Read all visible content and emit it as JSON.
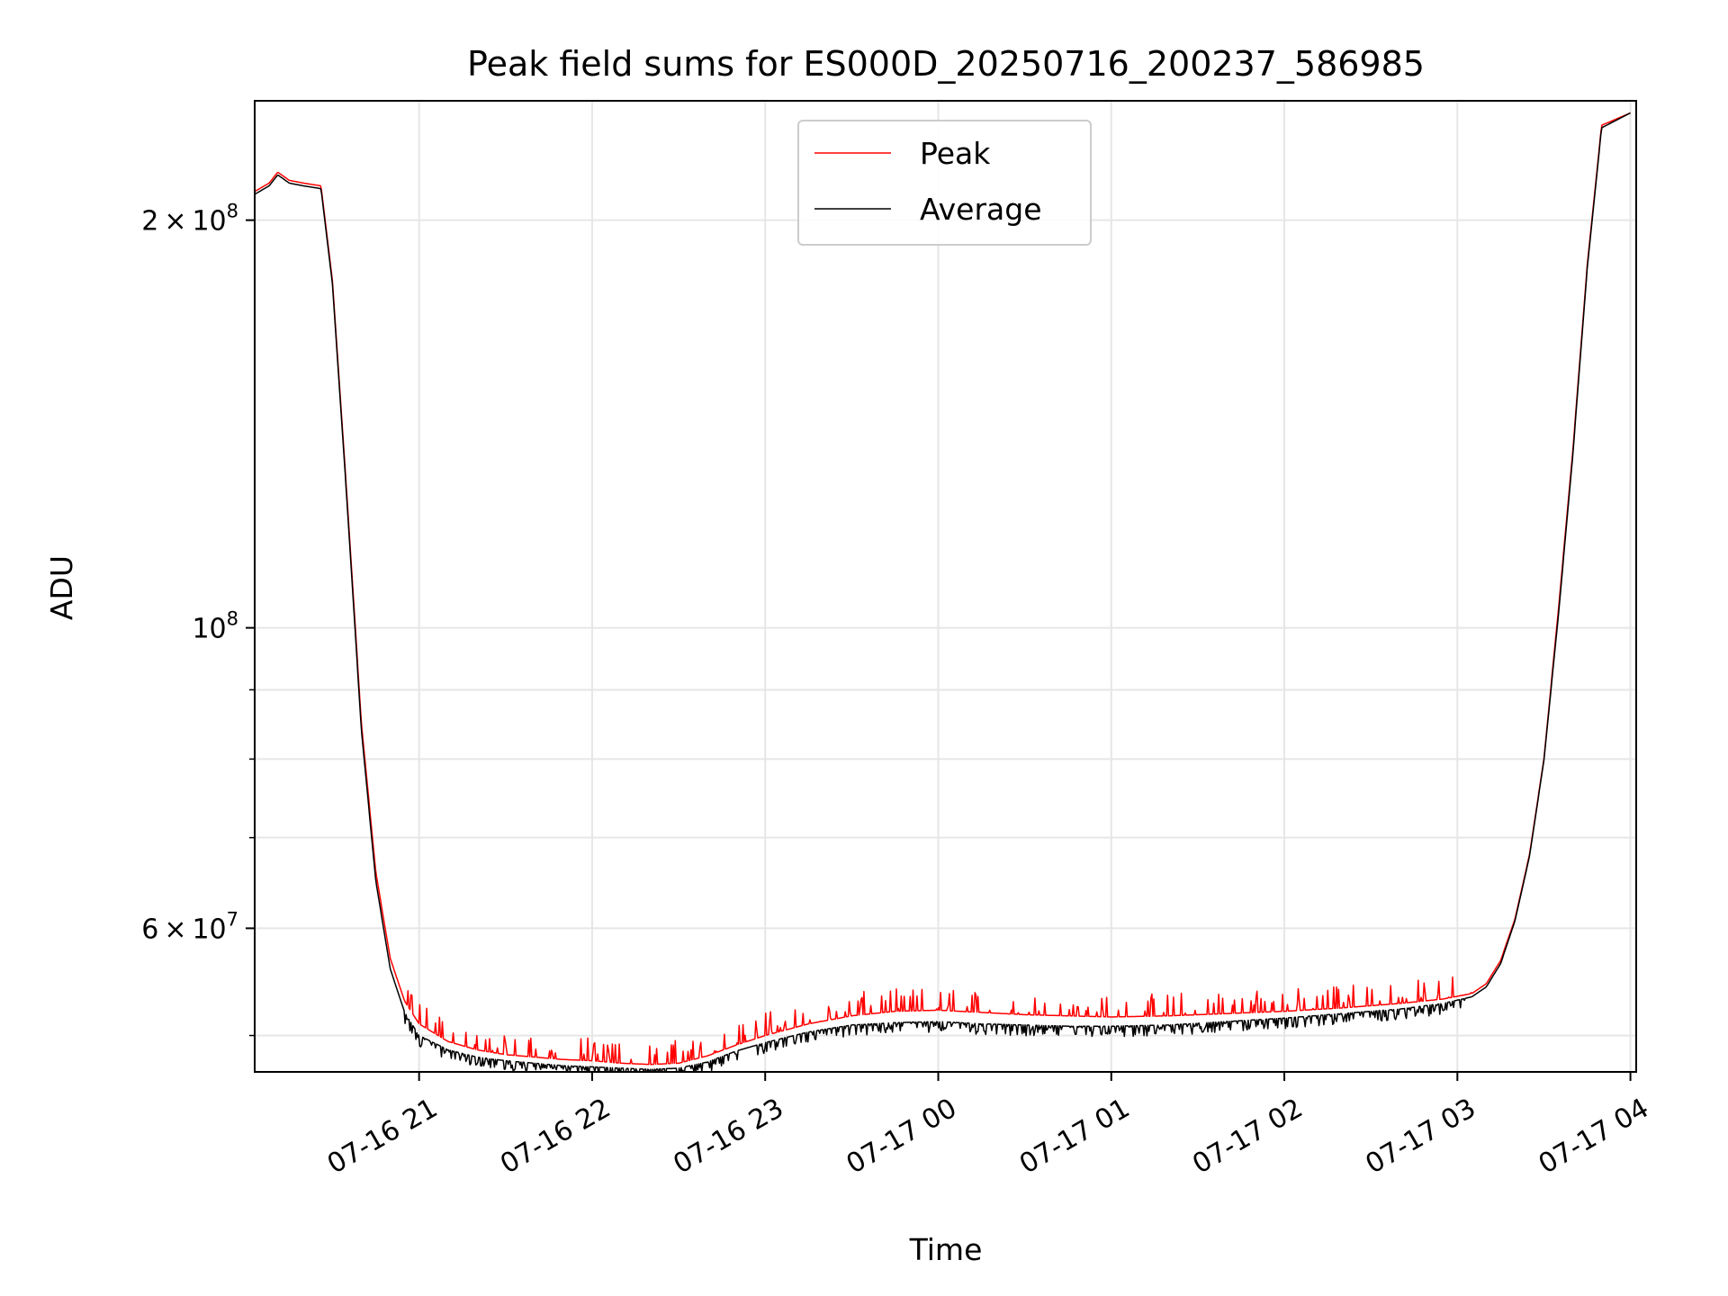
{
  "chart_data": {
    "type": "line",
    "title": "Peak field sums for ES000D_20250716_200237_586985",
    "xlabel": "Time",
    "ylabel": "ADU",
    "yscale": "log",
    "grid": true,
    "legend_position": "top-center",
    "xlim": [
      "2025-07-16 20:03",
      "2025-07-17 04:02"
    ],
    "ylim": [
      47000000,
      245000000
    ],
    "x_ticks": [
      {
        "value": "2025-07-16 21:00",
        "label": "07-16 21"
      },
      {
        "value": "2025-07-16 22:00",
        "label": "07-16 22"
      },
      {
        "value": "2025-07-16 23:00",
        "label": "07-16 23"
      },
      {
        "value": "2025-07-17 00:00",
        "label": "07-17 00"
      },
      {
        "value": "2025-07-17 01:00",
        "label": "07-17 01"
      },
      {
        "value": "2025-07-17 02:00",
        "label": "07-17 02"
      },
      {
        "value": "2025-07-17 03:00",
        "label": "07-17 03"
      },
      {
        "value": "2025-07-17 04:00",
        "label": "07-17 04"
      }
    ],
    "y_ticks_major": [
      {
        "value": 60000000,
        "mant": "6",
        "exp": "7"
      },
      {
        "value": 100000000,
        "mant": "",
        "exp": "8"
      },
      {
        "value": 200000000,
        "mant": "2",
        "exp": "8"
      }
    ],
    "y_ticks_minor": [
      50000000,
      70000000,
      80000000,
      90000000
    ],
    "series": [
      {
        "name": "Peak",
        "color": "#ff0000",
        "x": [
          "2025-07-16 20:03",
          "2025-07-16 20:08",
          "2025-07-16 20:11",
          "2025-07-16 20:15",
          "2025-07-16 20:20",
          "2025-07-16 20:26",
          "2025-07-16 20:30",
          "2025-07-16 20:35",
          "2025-07-16 20:40",
          "2025-07-16 20:45",
          "2025-07-16 20:50",
          "2025-07-16 20:55",
          "2025-07-16 21:00",
          "2025-07-16 21:10",
          "2025-07-16 21:20",
          "2025-07-16 21:30",
          "2025-07-16 21:40",
          "2025-07-16 21:50",
          "2025-07-16 22:00",
          "2025-07-16 22:10",
          "2025-07-16 22:20",
          "2025-07-16 22:30",
          "2025-07-16 22:40",
          "2025-07-16 22:50",
          "2025-07-16 23:00",
          "2025-07-16 23:15",
          "2025-07-16 23:30",
          "2025-07-16 23:45",
          "2025-07-17 00:00",
          "2025-07-17 00:15",
          "2025-07-17 00:30",
          "2025-07-17 00:45",
          "2025-07-17 01:00",
          "2025-07-17 01:20",
          "2025-07-17 01:40",
          "2025-07-17 02:00",
          "2025-07-17 02:20",
          "2025-07-17 02:40",
          "2025-07-17 02:55",
          "2025-07-17 03:05",
          "2025-07-17 03:10",
          "2025-07-17 03:15",
          "2025-07-17 03:20",
          "2025-07-17 03:25",
          "2025-07-17 03:30",
          "2025-07-17 03:35",
          "2025-07-17 03:40",
          "2025-07-17 03:45",
          "2025-07-17 03:50",
          "2025-07-17 04:00"
        ],
        "y": [
          210000000,
          213000000,
          217000000,
          214000000,
          213000000,
          212000000,
          180000000,
          125000000,
          85000000,
          66000000,
          57000000,
          53000000,
          51000000,
          49500000,
          48800000,
          48400000,
          48200000,
          48000000,
          47900000,
          47700000,
          47600000,
          47700000,
          48300000,
          49200000,
          50000000,
          51000000,
          51700000,
          52100000,
          52200000,
          52000000,
          51800000,
          51700000,
          51600000,
          51700000,
          51900000,
          52100000,
          52400000,
          52800000,
          53200000,
          53700000,
          54600000,
          56800000,
          61000000,
          68000000,
          80000000,
          103000000,
          135000000,
          185000000,
          235000000,
          240000000
        ]
      },
      {
        "name": "Average",
        "color": "#000000",
        "x": [
          "2025-07-16 20:03",
          "2025-07-16 20:08",
          "2025-07-16 20:11",
          "2025-07-16 20:15",
          "2025-07-16 20:20",
          "2025-07-16 20:26",
          "2025-07-16 20:30",
          "2025-07-16 20:35",
          "2025-07-16 20:40",
          "2025-07-16 20:45",
          "2025-07-16 20:50",
          "2025-07-16 20:55",
          "2025-07-16 21:00",
          "2025-07-16 21:10",
          "2025-07-16 21:20",
          "2025-07-16 21:30",
          "2025-07-16 21:40",
          "2025-07-16 21:50",
          "2025-07-16 22:00",
          "2025-07-16 22:10",
          "2025-07-16 22:20",
          "2025-07-16 22:30",
          "2025-07-16 22:40",
          "2025-07-16 22:50",
          "2025-07-16 23:00",
          "2025-07-16 23:15",
          "2025-07-16 23:30",
          "2025-07-16 23:45",
          "2025-07-17 00:00",
          "2025-07-17 00:15",
          "2025-07-17 00:30",
          "2025-07-17 00:45",
          "2025-07-17 01:00",
          "2025-07-17 01:20",
          "2025-07-17 01:40",
          "2025-07-17 02:00",
          "2025-07-17 02:20",
          "2025-07-17 02:40",
          "2025-07-17 02:55",
          "2025-07-17 03:05",
          "2025-07-17 03:10",
          "2025-07-17 03:15",
          "2025-07-17 03:20",
          "2025-07-17 03:25",
          "2025-07-17 03:30",
          "2025-07-17 03:35",
          "2025-07-17 03:40",
          "2025-07-17 03:45",
          "2025-07-17 03:50",
          "2025-07-17 04:00"
        ],
        "y": [
          209000000,
          212000000,
          216000000,
          213000000,
          212000000,
          211000000,
          179000000,
          124000000,
          84000000,
          65000000,
          56000000,
          52000000,
          50000000,
          48800000,
          48200000,
          47900000,
          47700000,
          47500000,
          47400000,
          47300000,
          47200000,
          47300000,
          47800000,
          48700000,
          49400000,
          50300000,
          50900000,
          51100000,
          51200000,
          51000000,
          50900000,
          50800000,
          50800000,
          50900000,
          51200000,
          51500000,
          51900000,
          52300000,
          52800000,
          53400000,
          54300000,
          56500000,
          60800000,
          67800000,
          79800000,
          102000000,
          134000000,
          184000000,
          234000000,
          240000000
        ]
      }
    ]
  }
}
